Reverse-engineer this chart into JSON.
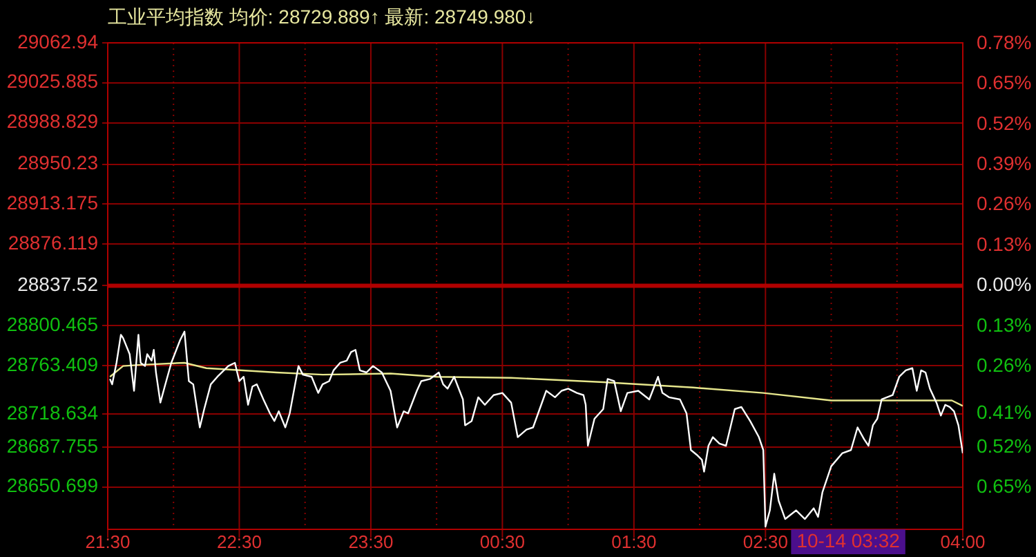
{
  "chart_data": {
    "type": "line",
    "title": "工业平均指数 均价: 28729.889↑ 最新: 28749.980↓",
    "xlim": [
      "--10-13T21:30",
      "--10-14T04:00"
    ],
    "xticks": [
      {
        "value": "--10-13T21:30",
        "label": "21:30"
      },
      {
        "value": "--10-13T22:00",
        "label": null
      },
      {
        "value": "--10-13T22:30",
        "label": "22:30"
      },
      {
        "value": "--10-13T23:00",
        "label": null
      },
      {
        "value": "--10-13T23:30",
        "label": "23:30"
      },
      {
        "value": "--10-14T00:00",
        "label": null
      },
      {
        "value": "--10-14T00:30",
        "label": "00:30"
      },
      {
        "value": "--10-14T01:00",
        "label": null
      },
      {
        "value": "--10-14T01:30",
        "label": "01:30"
      },
      {
        "value": "--10-14T02:00",
        "label": null
      },
      {
        "value": "--10-14T02:30",
        "label": "02:30"
      },
      {
        "value": "--10-14T03:00",
        "label": null
      },
      {
        "value": "--10-14T03:30",
        "label": null
      },
      {
        "value": "--10-14T04:00",
        "label": "04:00"
      }
    ],
    "ylim": [
      28611.4,
      29062.94
    ],
    "yticks": [
      29062.94,
      29025.885,
      28988.829,
      28950.23,
      28913.175,
      28876.119,
      28837.52,
      28800.465,
      28763.409,
      28718.634,
      28687.755,
      28650.699
    ],
    "y2lim": [
      -0.784,
      0.782
    ],
    "y2ticks": [
      {
        "value": 0.78,
        "label": "0.78%"
      },
      {
        "value": 0.65,
        "label": "0.65%"
      },
      {
        "value": 0.52,
        "label": "0.52%"
      },
      {
        "value": 0.39,
        "label": "0.39%"
      },
      {
        "value": 0.26,
        "label": "0.26%"
      },
      {
        "value": 0.13,
        "label": "0.13%"
      },
      {
        "value": 0,
        "label": "0.00%"
      },
      {
        "value": -0.13,
        "label": "0.13%"
      },
      {
        "value": -0.26,
        "label": "0.26%"
      },
      {
        "value": -0.41,
        "label": "0.41%"
      },
      {
        "value": -0.52,
        "label": "0.52%"
      },
      {
        "value": -0.65,
        "label": "0.65%"
      }
    ],
    "ref_lines": [
      {
        "axis": "y",
        "value": 28837.52,
        "color": "#b00000"
      }
    ],
    "annotations": [
      "10-14 03:32"
    ],
    "grid": true,
    "legend": false,
    "marker": "none",
    "line_style": "solid",
    "series": [
      {
        "color": "#ffffff",
        "x": [
          "--10-13T21:31",
          "--10-13T21:32",
          "--10-13T21:34",
          "--10-13T21:36",
          "--10-13T21:37",
          "--10-13T21:40",
          "--10-13T21:42",
          "--10-13T21:44",
          "--10-13T21:45",
          "--10-13T21:47",
          "--10-13T21:48",
          "--10-13T21:50",
          "--10-13T21:51",
          "--10-13T21:52",
          "--10-13T21:54",
          "--10-13T21:56",
          "--10-13T21:59",
          "--10-13T22:03",
          "--10-13T22:05",
          "--10-13T22:07",
          "--10-13T22:09",
          "--10-13T22:12",
          "--10-13T22:14",
          "--10-13T22:17",
          "--10-13T22:20",
          "--10-13T22:25",
          "--10-13T22:28",
          "--10-13T22:30",
          "--10-13T22:32",
          "--10-13T22:34",
          "--10-13T22:36",
          "--10-13T22:38",
          "--10-13T22:41",
          "--10-13T22:44",
          "--10-13T22:46",
          "--10-13T22:48",
          "--10-13T22:51",
          "--10-13T22:53",
          "--10-13T22:57",
          "--10-13T22:59",
          "--10-13T23:03",
          "--10-13T23:06",
          "--10-13T23:08",
          "--10-13T23:11",
          "--10-13T23:13",
          "--10-13T23:16",
          "--10-13T23:19",
          "--10-13T23:21",
          "--10-13T23:23",
          "--10-13T23:25",
          "--10-13T23:28",
          "--10-13T23:31",
          "--10-13T23:35",
          "--10-13T23:39",
          "--10-13T23:42",
          "--10-13T23:45",
          "--10-13T23:47",
          "--10-13T23:51",
          "--10-13T23:53",
          "--10-13T23:57",
          "--10-14T00:01",
          "--10-14T00:03",
          "--10-14T00:05",
          "--10-14T00:08",
          "--10-14T00:12",
          "--10-14T00:13",
          "--10-14T00:16",
          "--10-14T00:19",
          "--10-14T00:22",
          "--10-14T00:26",
          "--10-14T00:30",
          "--10-14T00:34",
          "--10-14T00:37",
          "--10-14T00:41",
          "--10-14T00:44",
          "--10-14T00:50",
          "--10-14T00:54",
          "--10-14T00:57",
          "--10-14T01:00",
          "--10-14T01:04",
          "--10-14T01:07",
          "--10-14T01:08",
          "--10-14T01:09",
          "--10-14T01:12",
          "--10-14T01:16",
          "--10-14T01:18",
          "--10-14T01:21",
          "--10-14T01:24",
          "--10-14T01:27",
          "--10-14T01:32",
          "--10-14T01:37",
          "--10-14T01:41",
          "--10-14T01:43",
          "--10-14T01:46",
          "--10-14T01:51",
          "--10-14T01:54",
          "--10-14T01:56",
          "--10-14T01:59",
          "--10-14T02:01",
          "--10-14T02:02",
          "--10-14T02:04",
          "--10-14T02:06",
          "--10-14T02:09",
          "--10-14T02:12",
          "--10-14T02:16",
          "--10-14T02:19",
          "--10-14T02:23",
          "--10-14T02:27",
          "--10-14T02:29",
          "--10-14T02:30",
          "--10-14T02:32",
          "--10-14T02:34",
          "--10-14T02:36",
          "--10-14T02:39",
          "--10-14T02:44",
          "--10-14T02:48",
          "--10-14T02:52",
          "--10-14T02:54",
          "--10-14T02:56",
          "--10-14T03:00",
          "--10-14T03:05",
          "--10-14T03:09",
          "--10-14T03:12",
          "--10-14T03:15",
          "--10-14T03:17",
          "--10-14T03:19",
          "--10-14T03:21",
          "--10-14T03:23",
          "--10-14T03:28",
          "--10-14T03:31",
          "--10-14T03:34",
          "--10-14T03:37",
          "--10-14T03:39",
          "--10-14T03:41",
          "--10-14T03:43",
          "--10-14T03:45",
          "--10-14T03:48",
          "--10-14T03:50",
          "--10-14T03:52",
          "--10-14T03:54",
          "--10-14T03:56",
          "--10-14T03:58",
          "--10-14T04:00"
        ],
        "values": [
          28751,
          28746,
          28766,
          28792,
          28789,
          28774,
          28740,
          28792,
          28766,
          28763,
          28774,
          28768,
          28778,
          28757,
          28729,
          28744,
          28766,
          28787,
          28795,
          28749,
          28746,
          28706,
          28723,
          28746,
          28753,
          28763,
          28766,
          28749,
          28753,
          28727,
          28744,
          28746,
          28732,
          28719,
          28712,
          28721,
          28706,
          28719,
          28763,
          28755,
          28753,
          28738,
          28746,
          28749,
          28759,
          28766,
          28768,
          28776,
          28778,
          28759,
          28757,
          28763,
          28757,
          28740,
          28706,
          28721,
          28719,
          28740,
          28749,
          28751,
          28757,
          28746,
          28742,
          28753,
          28732,
          28708,
          28712,
          28734,
          28727,
          28736,
          28738,
          28729,
          28697,
          28704,
          28706,
          28740,
          28734,
          28740,
          28742,
          28738,
          28736,
          28727,
          28689,
          28714,
          28723,
          28751,
          28749,
          28721,
          28738,
          28740,
          28732,
          28753,
          28738,
          28734,
          28732,
          28719,
          28685,
          28680,
          28676,
          28665,
          28689,
          28697,
          28691,
          28689,
          28723,
          28725,
          28712,
          28697,
          28685,
          28614,
          28629,
          28663,
          28638,
          28621,
          28629,
          28621,
          28631,
          28623,
          28646,
          28670,
          28682,
          28685,
          28706,
          28695,
          28689,
          28708,
          28714,
          28732,
          28736,
          28753,
          28759,
          28761,
          28740,
          28759,
          28757,
          28742,
          28729,
          28717,
          28727,
          28725,
          28721,
          28708,
          28682
        ]
      },
      {
        "color": "#e6e68c",
        "x": [
          "--10-13T21:31",
          "--10-13T21:37",
          "--10-13T21:44",
          "--10-13T22:05",
          "--10-13T22:15",
          "--10-13T22:47",
          "--10-13T23:08",
          "--10-13T23:39",
          "--10-14T00:00",
          "--10-14T00:34",
          "--10-14T01:16",
          "--10-14T01:57",
          "--10-14T02:29",
          "--10-14T03:00",
          "--10-14T03:38",
          "--10-14T03:55",
          "--10-14T04:00"
        ],
        "values": [
          28753,
          28763,
          28764,
          28766,
          28761,
          28757,
          28755,
          28756,
          28753,
          28752,
          28748,
          28743,
          28738,
          28731,
          28731,
          28731,
          28726
        ]
      }
    ]
  }
}
